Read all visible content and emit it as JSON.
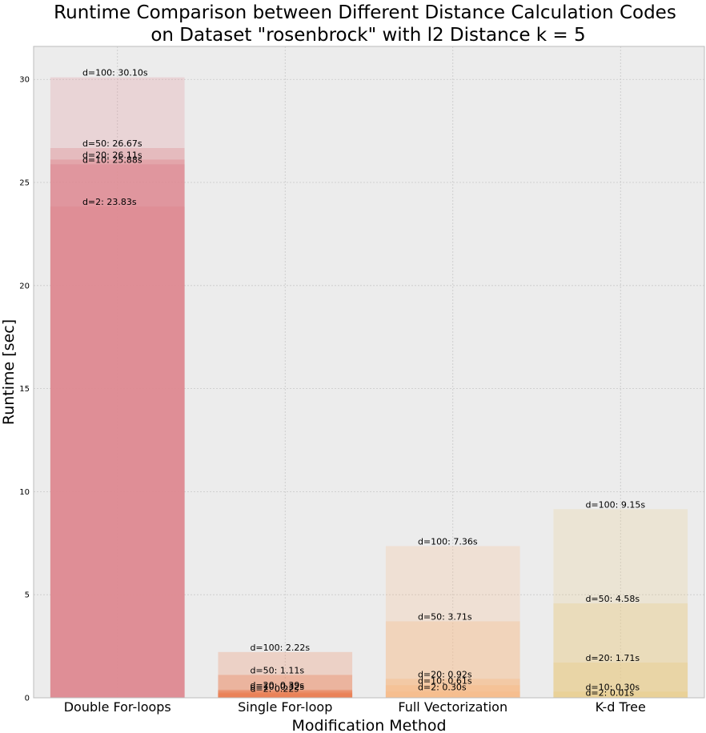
{
  "chart_data": {
    "type": "bar",
    "title_lines": [
      "Runtime Comparison between Different Distance Calculation Codes",
      "on Dataset \"rosenbrock\" with l2 Distance k = 5"
    ],
    "xlabel": "Modification Method",
    "ylabel": "Runtime [sec]",
    "ylim": [
      0,
      31.6
    ],
    "yticks": [
      0,
      5,
      10,
      15,
      20,
      25,
      30
    ],
    "grid": true,
    "bar_style": "overlaid",
    "categories": [
      "Double For-loops",
      "Single For-loop",
      "Full Vectorization",
      "K-d Tree"
    ],
    "colors": [
      "#df8b93",
      "#ea7f54",
      "#f6bc8c",
      "#e9cd8d"
    ],
    "series": [
      {
        "d": 100,
        "values": [
          30.1,
          2.22,
          7.36,
          9.15
        ],
        "labels": [
          "d=100: 30.10s",
          "d=100: 2.22s",
          "d=100: 7.36s",
          "d=100: 9.15s"
        ]
      },
      {
        "d": 50,
        "values": [
          26.67,
          1.11,
          3.71,
          4.58
        ],
        "labels": [
          "d=50: 26.67s",
          "d=50: 1.11s",
          "d=50: 3.71s",
          "d=50: 4.58s"
        ]
      },
      {
        "d": 20,
        "values": [
          26.11,
          0.39,
          0.92,
          1.71
        ],
        "labels": [
          "d=20: 26.11s",
          "d=20: 0.39s",
          "d=20: 0.92s",
          "d=20: 1.71s"
        ]
      },
      {
        "d": 10,
        "values": [
          25.88,
          0.32,
          0.61,
          0.3
        ],
        "labels": [
          "d=10: 25.88s",
          "d=10: 0.32s",
          "d=10: 0.61s",
          "d=10: 0.30s"
        ]
      },
      {
        "d": 2,
        "values": [
          23.83,
          0.22,
          0.3,
          0.01
        ],
        "labels": [
          "d=2: 23.83s",
          "d=2: 0.22s",
          "d=2: 0.30s",
          "d=2: 0.01s"
        ]
      }
    ]
  }
}
